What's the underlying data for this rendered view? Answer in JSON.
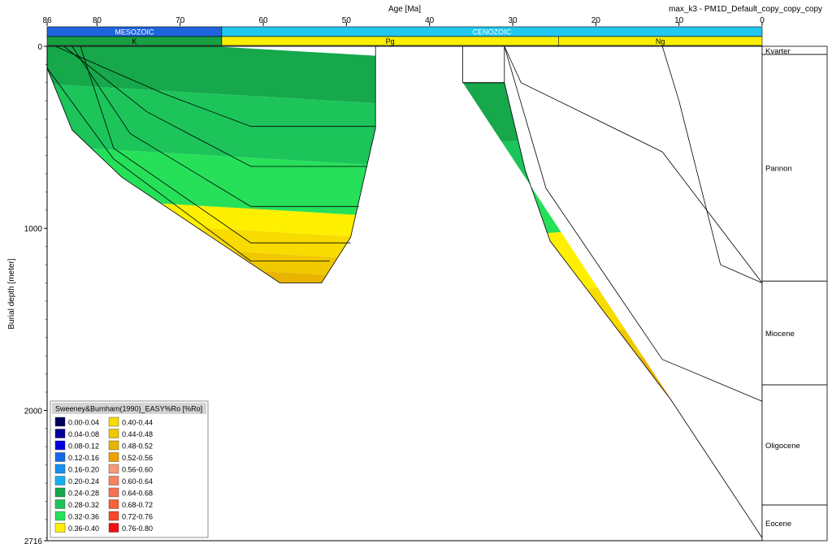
{
  "chart_data": {
    "type": "area",
    "title": "max_k3 - PM1D_Default_copy_copy_copy",
    "xlabel": "Age [Ma]",
    "ylabel": "Burial depth [meter]",
    "xlim": [
      86,
      0
    ],
    "ylim": [
      0,
      2716
    ],
    "x_ticks": [
      86,
      80,
      70,
      60,
      50,
      40,
      30,
      20,
      10,
      0
    ],
    "y_ticks": [
      0,
      1000,
      2000,
      2716
    ],
    "eras": [
      {
        "label": "MESOZOIC",
        "from": 86,
        "to": 65,
        "color": "#1e64dc"
      },
      {
        "label": "CENOZOIC",
        "from": 65,
        "to": 0,
        "color": "#22c8f0"
      }
    ],
    "periods": [
      {
        "label": "K",
        "from": 86,
        "to": 65,
        "color": "#18a040"
      },
      {
        "label": "Pg",
        "from": 65,
        "to": 24.5,
        "color": "#f8f000"
      },
      {
        "label": "Ng",
        "from": 24.5,
        "to": 0,
        "color": "#f8f000"
      }
    ],
    "formations": [
      {
        "label": "Kvarter",
        "top": 0,
        "base": 45
      },
      {
        "label": "Pannon",
        "top": 45,
        "base": 1290
      },
      {
        "label": "Miocene",
        "top": 1290,
        "base": 1860
      },
      {
        "label": "Oligocene",
        "top": 1860,
        "base": 2520
      },
      {
        "label": "Eocene",
        "top": 2520,
        "base": 2716
      }
    ],
    "legend": {
      "title": "Sweeney&Burnham(1990)_EASY%Ro [%Ro]",
      "placement": "bottom-left",
      "entries": [
        {
          "label": "0.00-0.04",
          "color": "#000060"
        },
        {
          "label": "0.04-0.08",
          "color": "#00009a"
        },
        {
          "label": "0.08-0.12",
          "color": "#0000e0"
        },
        {
          "label": "0.12-0.16",
          "color": "#1468ea"
        },
        {
          "label": "0.16-0.20",
          "color": "#1890f0"
        },
        {
          "label": "0.20-0.24",
          "color": "#18b0f0"
        },
        {
          "label": "0.24-0.28",
          "color": "#16a84a"
        },
        {
          "label": "0.28-0.32",
          "color": "#1cc45a"
        },
        {
          "label": "0.32-0.36",
          "color": "#26e05a"
        },
        {
          "label": "0.36-0.40",
          "color": "#fff000"
        },
        {
          "label": "0.40-0.44",
          "color": "#f8dc00"
        },
        {
          "label": "0.44-0.48",
          "color": "#f0c800"
        },
        {
          "label": "0.48-0.52",
          "color": "#e8b400"
        },
        {
          "label": "0.52-0.56",
          "color": "#f0a000"
        },
        {
          "label": "0.56-0.60",
          "color": "#f89878"
        },
        {
          "label": "0.60-0.64",
          "color": "#f88060"
        },
        {
          "label": "0.64-0.68",
          "color": "#f87050"
        },
        {
          "label": "0.68-0.72",
          "color": "#f86038"
        },
        {
          "label": "0.72-0.76",
          "color": "#f84828"
        },
        {
          "label": "0.76-0.80",
          "color": "#f01010"
        }
      ]
    },
    "left_section": {
      "age_range": [
        86,
        46.5
      ],
      "horizons": [
        {
          "x": [
            86,
            76,
            62,
            46.5
          ],
          "y": [
            0,
            0,
            0,
            0
          ]
        },
        {
          "x": [
            85,
            72,
            61.5,
            46.5
          ],
          "y": [
            0,
            260,
            440,
            440
          ]
        },
        {
          "x": [
            84,
            74,
            61.5,
            47.5
          ],
          "y": [
            0,
            360,
            660,
            660
          ]
        },
        {
          "x": [
            83,
            76,
            61.5,
            48.5
          ],
          "y": [
            0,
            480,
            880,
            880
          ]
        },
        {
          "x": [
            82,
            78,
            61.5,
            49.5
          ],
          "y": [
            0,
            560,
            1080,
            1080
          ]
        },
        {
          "x": [
            86,
            78,
            61.5,
            52
          ],
          "y": [
            120,
            620,
            1180,
            1180
          ]
        },
        {
          "x": [
            86,
            86,
            83,
            77,
            58,
            53,
            49.5,
            46.5,
            46.5
          ],
          "y": [
            0,
            120,
            460,
            720,
            1300,
            1300,
            1050,
            450,
            0
          ]
        }
      ],
      "zones": [
        {
          "range": "0.20-0.24",
          "depth_band": [
            0,
            30
          ]
        },
        {
          "range": "0.24-0.28",
          "depth_band": [
            0,
            260
          ]
        },
        {
          "range": "0.28-0.32",
          "depth_band": [
            260,
            600
          ]
        },
        {
          "range": "0.32-0.36",
          "depth_band": [
            600,
            880
          ]
        },
        {
          "range": "0.36-0.40",
          "depth_band": [
            880,
            1000
          ]
        },
        {
          "range": "0.40-0.44",
          "depth_band": [
            1000,
            1120
          ]
        },
        {
          "range": "0.44-0.48",
          "depth_band": [
            1120,
            1220
          ]
        },
        {
          "range": "0.48-0.52",
          "depth_band": [
            1220,
            1300
          ]
        }
      ]
    },
    "right_section": {
      "age_range": [
        36,
        0
      ],
      "horizons": [
        {
          "x": [
            36,
            36,
            31,
            31
          ],
          "y": [
            0,
            200,
            200,
            0
          ]
        },
        {
          "x": [
            31,
            26,
            12,
            0
          ],
          "y": [
            0,
            780,
            1720,
            1950
          ]
        },
        {
          "x": [
            31,
            29,
            12,
            0
          ],
          "y": [
            0,
            200,
            580,
            1300
          ]
        },
        {
          "x": [
            12,
            10,
            5,
            0
          ],
          "y": [
            0,
            300,
            1200,
            1300
          ]
        },
        {
          "x": [
            36,
            31,
            28.5,
            25.5,
            11,
            0
          ],
          "y": [
            200,
            200,
            680,
            1070,
            1940,
            2700
          ]
        }
      ],
      "zones": [
        {
          "range": "0.20-0.24",
          "depth_band": [
            0,
            80
          ]
        },
        {
          "range": "0.24-0.28",
          "depth_band": [
            0,
            480
          ]
        },
        {
          "range": "0.28-0.32",
          "depth_band": [
            480,
            760
          ]
        },
        {
          "range": "0.32-0.36",
          "depth_band": [
            760,
            1000
          ]
        },
        {
          "range": "0.36-0.40",
          "depth_band": [
            1000,
            1320
          ]
        },
        {
          "range": "0.40-0.44",
          "depth_band": [
            1320,
            1560
          ]
        },
        {
          "range": "0.44-0.48",
          "depth_band": [
            1560,
            1720
          ]
        },
        {
          "range": "0.48-0.52",
          "depth_band": [
            1720,
            1860
          ]
        },
        {
          "range": "0.52-0.56",
          "depth_band": [
            1860,
            1940
          ]
        },
        {
          "range": "0.56-0.60",
          "depth_band": [
            1940,
            2120
          ]
        },
        {
          "range": "0.60-0.64",
          "depth_band": [
            2120,
            2260
          ]
        },
        {
          "range": "0.64-0.68",
          "depth_band": [
            2260,
            2400
          ]
        },
        {
          "range": "0.68-0.72",
          "depth_band": [
            2400,
            2540
          ]
        },
        {
          "range": "0.72-0.76",
          "depth_band": [
            2540,
            2640
          ]
        },
        {
          "range": "0.76-0.80",
          "depth_band": [
            2640,
            2716
          ]
        }
      ]
    }
  }
}
